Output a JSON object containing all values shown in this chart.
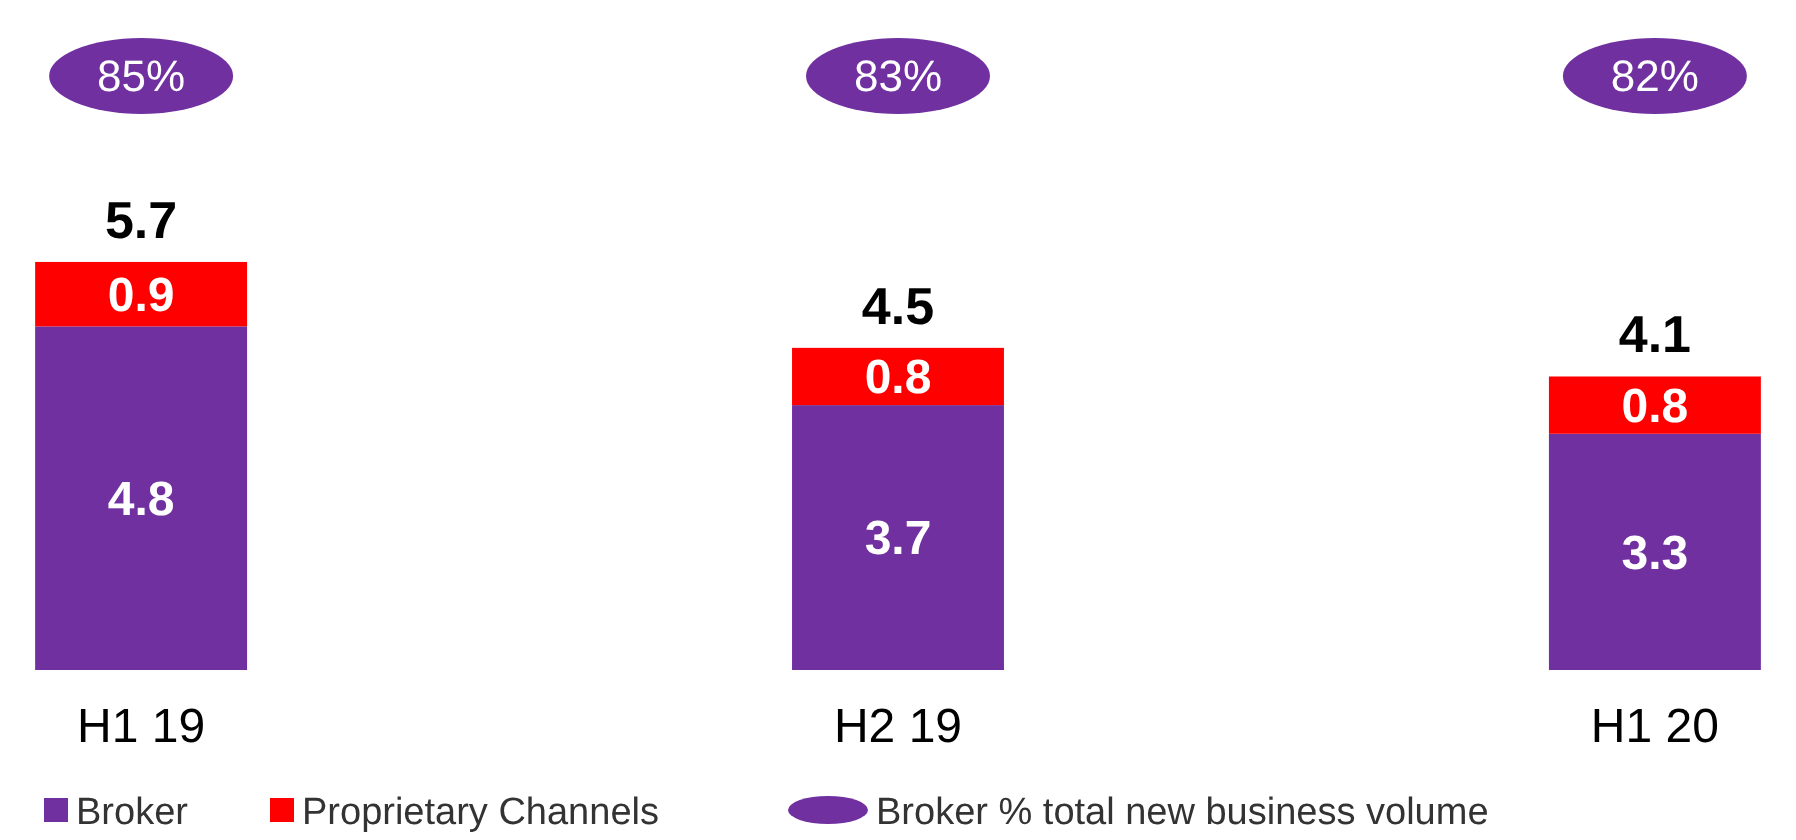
{
  "chart_data": {
    "type": "bar",
    "stacked": true,
    "categories": [
      "H1 19",
      "H2 19",
      "H1 20"
    ],
    "series": [
      {
        "name": "Broker",
        "color": "#7030a0",
        "values": [
          4.8,
          3.7,
          3.3
        ]
      },
      {
        "name": "Proprietary Channels",
        "color": "#ff0000",
        "values": [
          0.9,
          0.8,
          0.8
        ]
      }
    ],
    "annotations": [
      "85%",
      "83%",
      "82%",
      "Broker % total new business volume"
    ],
    "tick_labels": "x",
    "data_labels": true,
    "totals": [
      "5.7",
      "4.5",
      "4.1"
    ],
    "legend": "bottom"
  }
}
